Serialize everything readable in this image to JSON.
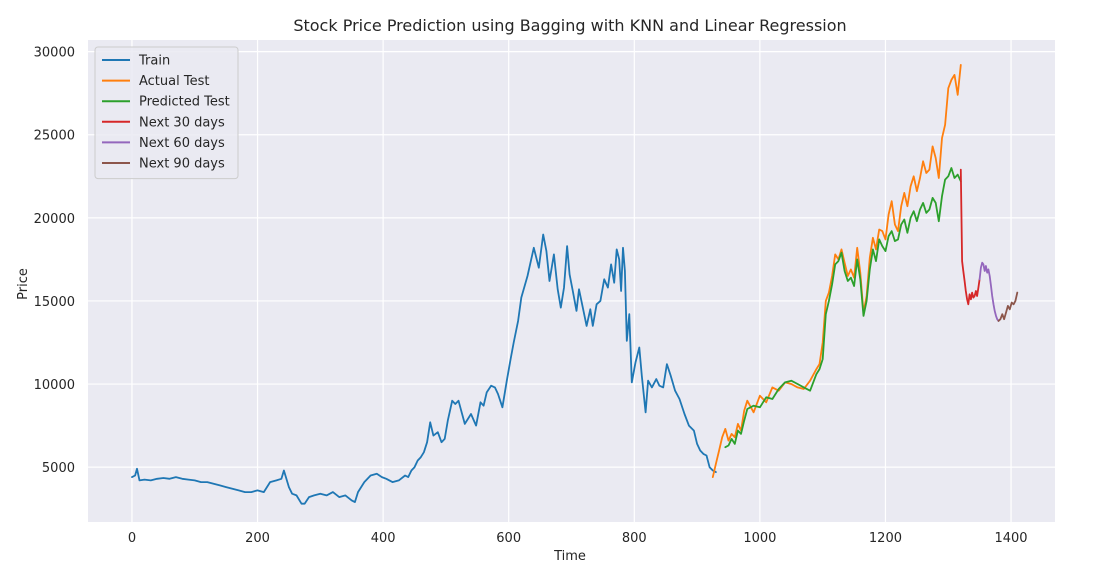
{
  "chart_data": {
    "type": "line",
    "title": "Stock Price Prediction using Bagging with KNN and Linear Regression",
    "xlabel": "Time",
    "ylabel": "Price",
    "xlim": [
      -70,
      1470
    ],
    "ylim": [
      1700,
      30700
    ],
    "xticks": [
      0,
      200,
      400,
      600,
      800,
      1000,
      1200,
      1400
    ],
    "yticks": [
      5000,
      10000,
      15000,
      20000,
      25000,
      30000
    ],
    "grid": true,
    "legend_position": "top-left",
    "series": [
      {
        "name": "Train",
        "color": "#1f77b4",
        "x": [
          0,
          5,
          8,
          12,
          20,
          30,
          40,
          50,
          60,
          70,
          80,
          90,
          100,
          110,
          120,
          130,
          140,
          150,
          160,
          170,
          180,
          190,
          200,
          210,
          220,
          230,
          238,
          242,
          250,
          255,
          262,
          270,
          275,
          282,
          290,
          300,
          310,
          320,
          330,
          340,
          350,
          355,
          360,
          370,
          380,
          390,
          398,
          405,
          415,
          425,
          435,
          440,
          445,
          450,
          455,
          460,
          465,
          470,
          475,
          480,
          487,
          493,
          498,
          503,
          510,
          515,
          520,
          530,
          540,
          548,
          555,
          560,
          565,
          572,
          578,
          583,
          590,
          597,
          603,
          608,
          615,
          620,
          630,
          640,
          648,
          655,
          660,
          665,
          672,
          678,
          683,
          688,
          693,
          697,
          702,
          708,
          712,
          718,
          724,
          730,
          734,
          740,
          746,
          752,
          758,
          763,
          768,
          772,
          776,
          779,
          782,
          785,
          788,
          792,
          796,
          802,
          808,
          812,
          818,
          822,
          828,
          835,
          840,
          846,
          852,
          858,
          865,
          872,
          880,
          887,
          895,
          900,
          905,
          910,
          915,
          920,
          925,
          930
        ],
        "y": [
          4400,
          4500,
          4900,
          4200,
          4250,
          4200,
          4300,
          4350,
          4300,
          4400,
          4300,
          4250,
          4200,
          4100,
          4100,
          4000,
          3900,
          3800,
          3700,
          3600,
          3500,
          3500,
          3600,
          3500,
          4100,
          4200,
          4300,
          4800,
          3800,
          3400,
          3300,
          2800,
          2800,
          3200,
          3300,
          3400,
          3300,
          3500,
          3200,
          3300,
          3000,
          2900,
          3500,
          4100,
          4500,
          4600,
          4400,
          4300,
          4100,
          4200,
          4500,
          4400,
          4800,
          5000,
          5400,
          5600,
          5900,
          6500,
          7700,
          6900,
          7100,
          6500,
          6700,
          7800,
          9000,
          8800,
          9000,
          7600,
          8200,
          7500,
          8900,
          8700,
          9500,
          9900,
          9800,
          9400,
          8600,
          10200,
          11500,
          12500,
          13800,
          15200,
          16500,
          18200,
          17000,
          19000,
          18000,
          16200,
          17800,
          15700,
          14600,
          15800,
          18300,
          16600,
          15600,
          14400,
          15700,
          14600,
          13500,
          14500,
          13500,
          14800,
          15000,
          16300,
          15800,
          17200,
          16100,
          18100,
          17500,
          15600,
          18200,
          16800,
          12600,
          14200,
          10100,
          11300,
          12200,
          10500,
          8300,
          10200,
          9800,
          10300,
          9900,
          9800,
          11200,
          10500,
          9600,
          9100,
          8200,
          7500,
          7200,
          6400,
          6000,
          5800,
          5700,
          5000,
          4800,
          4700
        ]
      },
      {
        "name": "Actual Test",
        "color": "#ff7f0e",
        "x": [
          925,
          930,
          935,
          940,
          945,
          950,
          955,
          960,
          965,
          970,
          975,
          980,
          990,
          1000,
          1010,
          1020,
          1030,
          1040,
          1050,
          1060,
          1070,
          1080,
          1090,
          1095,
          1100,
          1105,
          1110,
          1115,
          1120,
          1125,
          1130,
          1135,
          1140,
          1145,
          1150,
          1155,
          1160,
          1165,
          1170,
          1175,
          1180,
          1185,
          1190,
          1195,
          1200,
          1205,
          1210,
          1215,
          1220,
          1225,
          1230,
          1235,
          1240,
          1245,
          1250,
          1255,
          1260,
          1265,
          1270,
          1275,
          1280,
          1285,
          1290,
          1295,
          1300,
          1305,
          1310,
          1315,
          1320
        ],
        "y": [
          4400,
          5200,
          6000,
          6800,
          7300,
          6600,
          7000,
          6800,
          7600,
          7200,
          8400,
          9000,
          8300,
          9300,
          8900,
          9800,
          9600,
          10100,
          10000,
          9800,
          9700,
          10200,
          10900,
          11200,
          12500,
          15000,
          15500,
          16500,
          17800,
          17500,
          18100,
          17300,
          16500,
          16900,
          16400,
          18200,
          16700,
          14300,
          15300,
          17600,
          18800,
          18100,
          19300,
          19200,
          18700,
          20200,
          21000,
          19600,
          19200,
          20700,
          21500,
          20700,
          21900,
          22500,
          21600,
          22400,
          23400,
          22700,
          22900,
          24300,
          23600,
          22400,
          24800,
          25600,
          27800,
          28300,
          28600,
          27400,
          29200
        ]
      },
      {
        "name": "Predicted Test",
        "color": "#2ca02c",
        "x": [
          945,
          950,
          955,
          960,
          965,
          970,
          975,
          980,
          990,
          1000,
          1010,
          1020,
          1030,
          1040,
          1050,
          1060,
          1070,
          1080,
          1090,
          1095,
          1100,
          1105,
          1110,
          1115,
          1120,
          1125,
          1130,
          1135,
          1140,
          1145,
          1150,
          1155,
          1160,
          1165,
          1170,
          1175,
          1180,
          1185,
          1190,
          1195,
          1200,
          1205,
          1210,
          1215,
          1220,
          1225,
          1230,
          1235,
          1240,
          1245,
          1250,
          1255,
          1260,
          1265,
          1270,
          1275,
          1280,
          1285,
          1290,
          1295,
          1300,
          1305,
          1310,
          1315,
          1320
        ],
        "y": [
          6200,
          6300,
          6700,
          6400,
          7200,
          7000,
          7800,
          8500,
          8700,
          8600,
          9200,
          9100,
          9700,
          10100,
          10200,
          10000,
          9800,
          9600,
          10600,
          10900,
          11500,
          14200,
          15000,
          16000,
          17200,
          17400,
          17900,
          16800,
          16200,
          16400,
          15900,
          17500,
          16300,
          14100,
          15000,
          16900,
          18100,
          17400,
          18700,
          18300,
          18000,
          18900,
          19200,
          18600,
          18700,
          19600,
          19900,
          19100,
          20000,
          20400,
          19800,
          20500,
          20900,
          20300,
          20500,
          21200,
          20900,
          19800,
          21300,
          22300,
          22500,
          23000,
          22400,
          22600,
          22200
        ]
      },
      {
        "name": "Next 30 days",
        "color": "#d62728",
        "x": [
          1320,
          1322,
          1324,
          1326,
          1328,
          1330,
          1332,
          1334,
          1336,
          1338,
          1340,
          1342,
          1344,
          1346,
          1348,
          1350
        ],
        "y": [
          22900,
          17400,
          16800,
          16200,
          15600,
          15100,
          14800,
          15400,
          15100,
          15500,
          15200,
          15300,
          15600,
          15300,
          15800,
          16300
        ]
      },
      {
        "name": "Next 60 days",
        "color": "#9467bd",
        "x": [
          1350,
          1352,
          1354,
          1356,
          1358,
          1360,
          1362,
          1364,
          1366,
          1368,
          1370,
          1372,
          1374,
          1376,
          1378,
          1380
        ],
        "y": [
          16300,
          17000,
          17300,
          17200,
          16800,
          17100,
          16700,
          16900,
          16500,
          15900,
          15300,
          14800,
          14400,
          14100,
          13900,
          13800
        ]
      },
      {
        "name": "Next 90 days",
        "color": "#8c564b",
        "x": [
          1380,
          1383,
          1386,
          1389,
          1392,
          1395,
          1398,
          1401,
          1404,
          1407,
          1410
        ],
        "y": [
          13800,
          13900,
          14200,
          13900,
          14300,
          14700,
          14500,
          14900,
          14800,
          15000,
          15500
        ]
      }
    ]
  }
}
